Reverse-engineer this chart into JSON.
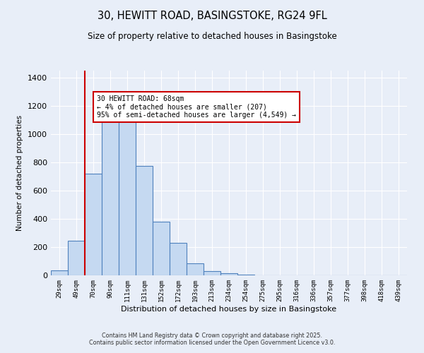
{
  "title_line1": "30, HEWITT ROAD, BASINGSTOKE, RG24 9FL",
  "title_line2": "Size of property relative to detached houses in Basingstoke",
  "xlabel": "Distribution of detached houses by size in Basingstoke",
  "ylabel": "Number of detached properties",
  "bar_labels": [
    "29sqm",
    "49sqm",
    "70sqm",
    "90sqm",
    "111sqm",
    "131sqm",
    "152sqm",
    "172sqm",
    "193sqm",
    "213sqm",
    "234sqm",
    "254sqm",
    "275sqm",
    "295sqm",
    "316sqm",
    "336sqm",
    "357sqm",
    "377sqm",
    "398sqm",
    "418sqm",
    "439sqm"
  ],
  "bar_values": [
    35,
    245,
    720,
    1120,
    1130,
    775,
    380,
    230,
    85,
    32,
    15,
    5,
    0,
    0,
    0,
    0,
    0,
    0,
    0,
    0,
    0
  ],
  "bar_color": "#c5d9f1",
  "bar_edge_color": "#4f81bd",
  "vline_x_idx": 1.5,
  "vline_color": "#cc0000",
  "annotation_text": "30 HEWITT ROAD: 68sqm\n← 4% of detached houses are smaller (207)\n95% of semi-detached houses are larger (4,549) →",
  "annotation_box_color": "#ffffff",
  "annotation_box_edge": "#cc0000",
  "ylim": [
    0,
    1450
  ],
  "yticks": [
    0,
    200,
    400,
    600,
    800,
    1000,
    1200,
    1400
  ],
  "background_color": "#e8eef8",
  "grid_color": "#ffffff",
  "footer_line1": "Contains HM Land Registry data © Crown copyright and database right 2025.",
  "footer_line2": "Contains public sector information licensed under the Open Government Licence v3.0."
}
